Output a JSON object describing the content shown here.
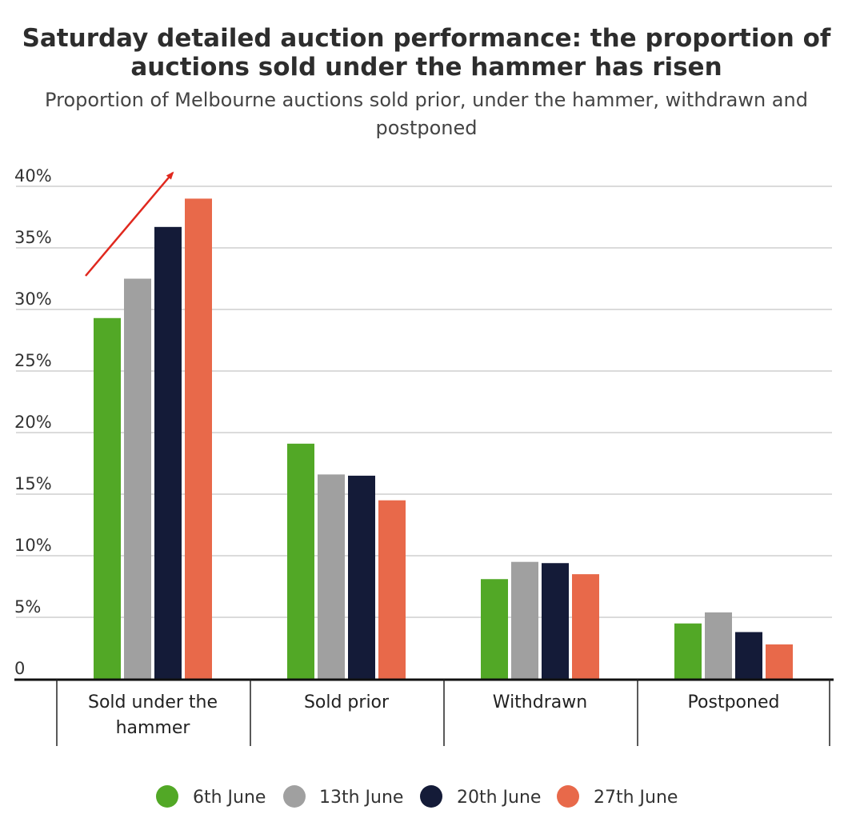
{
  "chart_data": {
    "type": "bar",
    "title": "Saturday detailed auction performance: the proportion of auctions sold under the hammer has risen",
    "subtitle": "Proportion of Melbourne auctions sold prior, under the hammer, withdrawn and postponed",
    "categories": [
      [
        "Sold under the",
        "hammer"
      ],
      [
        "Sold prior"
      ],
      [
        "Withdrawn"
      ],
      [
        "Postponed"
      ]
    ],
    "series": [
      {
        "name": "6th June",
        "color": "#52a826",
        "values": [
          29.3,
          19.1,
          8.1,
          4.5
        ]
      },
      {
        "name": "13th June",
        "color": "#a0a0a0",
        "values": [
          32.5,
          16.6,
          9.5,
          5.4
        ]
      },
      {
        "name": "20th June",
        "color": "#141b38",
        "values": [
          36.7,
          16.5,
          9.4,
          3.8
        ]
      },
      {
        "name": "27th June",
        "color": "#e8694a",
        "values": [
          39.0,
          14.5,
          8.5,
          2.8
        ]
      }
    ],
    "ylim": [
      0,
      40
    ],
    "yticks": [
      {
        "value": 0,
        "label": "0"
      },
      {
        "value": 5,
        "label": "5%"
      },
      {
        "value": 10,
        "label": "10%"
      },
      {
        "value": 15,
        "label": "15%"
      },
      {
        "value": 20,
        "label": "20%"
      },
      {
        "value": 25,
        "label": "25%"
      },
      {
        "value": 30,
        "label": "30%"
      },
      {
        "value": 35,
        "label": "35%"
      },
      {
        "value": 40,
        "label": "40%"
      }
    ],
    "grid": true,
    "legend_position": "bottom",
    "annotation": {
      "type": "arrow",
      "color": "#e0281e",
      "meaning": "rising trend for sold under the hammer"
    }
  }
}
